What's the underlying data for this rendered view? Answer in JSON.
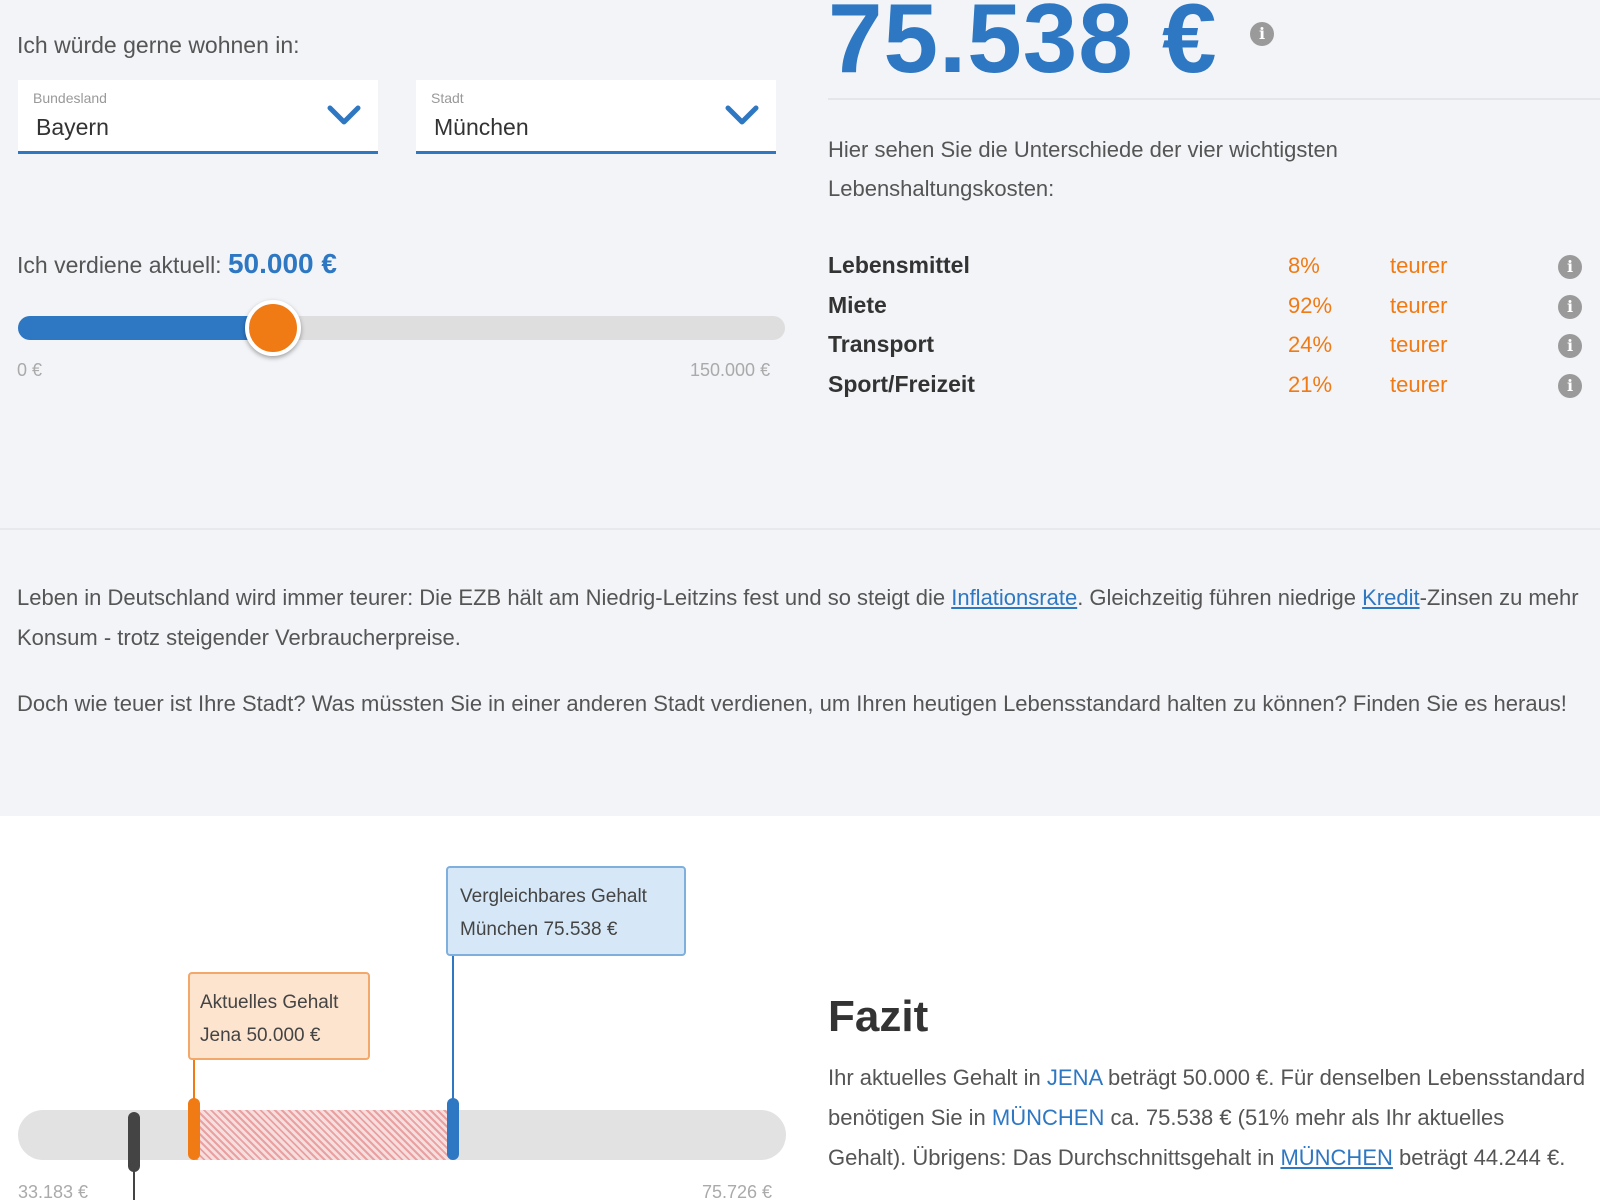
{
  "location": {
    "label": "Ich würde gerne wohnen in:",
    "state": {
      "small_label": "Bundesland",
      "value": "Bayern"
    },
    "city": {
      "small_label": "Stadt",
      "value": "München"
    }
  },
  "income": {
    "label": "Ich verdiene aktuell:",
    "value": "50.000 €",
    "slider_min_label": "0 €",
    "slider_max_label": "150.000 €",
    "slider_fraction": 0.333
  },
  "result": {
    "amount": "75.538 €"
  },
  "costs": {
    "description": "Hier sehen Sie die Unterschiede der vier wichtigsten Lebenshaltungskosten:",
    "items": [
      {
        "name": "Lebensmittel",
        "percent": "8%",
        "comparison": "teurer"
      },
      {
        "name": "Miete",
        "percent": "92%",
        "comparison": "teurer"
      },
      {
        "name": "Transport",
        "percent": "24%",
        "comparison": "teurer"
      },
      {
        "name": "Sport/Freizeit",
        "percent": "21%",
        "comparison": "teurer"
      }
    ]
  },
  "intro": {
    "p1_before": "Leben in Deutschland wird immer teurer: Die EZB hält am Niedrig-Leitzins fest und so steigt die ",
    "p1_link1": "Inflationsrate",
    "p1_middle": ". Gleichzeitig führen niedrige ",
    "p1_link2": "Kredit",
    "p1_after": "-Zinsen zu mehr Konsum - trotz steigender Verbraucherpreise.",
    "p2": "Doch wie teuer ist Ihre Stadt? Was müssten Sie in einer anderen Stadt verdienen, um Ihren heutigen Lebensstandard halten zu können? Finden Sie es heraus!"
  },
  "comparison": {
    "current": {
      "line1": "Aktuelles Gehalt",
      "line2": "Jena 50.000 €"
    },
    "comparable": {
      "line1": "Vergleichbares Gehalt",
      "line2": "München 75.538 €"
    },
    "min_label": "33.183 €",
    "max_label": "75.726 €"
  },
  "fazit": {
    "title": "Fazit",
    "t1": "Ihr aktuelles Gehalt in ",
    "city1": "JENA",
    "t2": " beträgt 50.000 €. Für denselben Lebensstandard benötigen Sie in ",
    "city2": "MÜNCHEN",
    "t3": " ca. 75.538 € (51% mehr als Ihr aktuelles Gehalt). Übrigens: Das Durchschnittsgehalt in ",
    "city3": "MÜNCHEN",
    "t4": " beträgt 44.244 €."
  },
  "colors": {
    "accent_blue": "#2e77c2",
    "accent_orange": "#f07a14"
  }
}
